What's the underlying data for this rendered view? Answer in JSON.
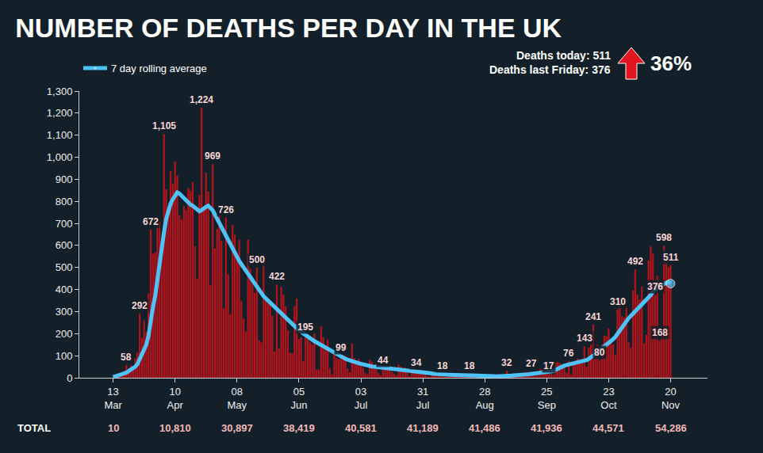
{
  "chart_data": {
    "type": "bar",
    "title": "NUMBER OF DEATHS PER DAY IN THE UK",
    "categories": [
      "13 Mar",
      null,
      null,
      null,
      null,
      null,
      null,
      null,
      null,
      null,
      null,
      null,
      null,
      null,
      null,
      null,
      null,
      null,
      null,
      null,
      null,
      null,
      null,
      null,
      null,
      null,
      null,
      null,
      "10 Apr",
      null,
      null,
      null,
      null,
      null,
      null,
      null,
      null,
      null,
      null,
      null,
      null,
      null,
      null,
      null,
      null,
      null,
      null,
      null,
      null,
      null,
      null,
      null,
      null,
      null,
      null,
      null,
      "08 May",
      null,
      null,
      null,
      null,
      null,
      null,
      null,
      null,
      null,
      null,
      null,
      null,
      null,
      null,
      null,
      null,
      null,
      null,
      null,
      null,
      null,
      null,
      null,
      null,
      null,
      null,
      null,
      "05 Jun",
      null,
      null,
      null,
      null,
      null,
      null,
      null,
      null,
      null,
      null,
      null,
      null,
      null,
      null,
      null,
      null,
      null,
      null,
      null,
      null,
      null,
      null,
      null,
      null,
      null,
      null,
      null,
      "03 Jul",
      null,
      null,
      null,
      null,
      null,
      null,
      null,
      null,
      null,
      null,
      null,
      null,
      null,
      null,
      null,
      null,
      null,
      null,
      null,
      null,
      null,
      null,
      null,
      null,
      null,
      null,
      null,
      "31 Jul",
      null,
      null,
      null,
      null,
      null,
      null,
      null,
      null,
      null,
      null,
      null,
      null,
      null,
      null,
      null,
      null,
      null,
      null,
      null,
      null,
      null,
      null,
      null,
      null,
      null,
      null,
      null,
      "28 Aug",
      null,
      null,
      null,
      null,
      null,
      null,
      null,
      null,
      null,
      null,
      null,
      null,
      null,
      null,
      null,
      null,
      null,
      null,
      null,
      null,
      null,
      null,
      null,
      null,
      null,
      null,
      null,
      "25 Sep",
      null,
      null,
      null,
      null,
      null,
      null,
      null,
      null,
      null,
      null,
      null,
      null,
      null,
      null,
      null,
      null,
      null,
      null,
      null,
      null,
      null,
      null,
      null,
      null,
      null,
      null,
      null,
      "23 Oct",
      null,
      null,
      null,
      null,
      null,
      null,
      null,
      null,
      null,
      null,
      null,
      null,
      null,
      null,
      null,
      null,
      null,
      null,
      null,
      null,
      null,
      null,
      null,
      null,
      null,
      null,
      null,
      "20 Nov"
    ],
    "series": [
      {
        "type": "bar",
        "color": "#b3141c",
        "values": [
          1,
          11,
          14,
          20,
          16,
          33,
          58,
          40,
          56,
          48,
          87,
          115,
          292,
          181,
          260,
          209,
          381,
          672,
          563,
          569,
          684,
          708,
          621,
          1105,
          854,
          758,
          938,
          881,
          980,
          917,
          737,
          717,
          778,
          761,
          861,
          847,
          888,
          596,
          449,
          828,
          1224,
          763,
          930,
          844,
          420,
          969,
          586,
          674,
          739,
          621,
          315,
          726,
          469,
          288,
          693,
          649,
          539,
          626,
          346,
          268,
          210,
          627,
          494,
          428,
          384,
          500,
          170,
          160,
          545,
          363,
          338,
          351,
          282,
          118,
          422,
          134,
          412,
          377,
          324,
          215,
          113,
          111,
          324,
          359,
          176,
          184,
          77,
          195,
          176,
          160,
          151,
          202,
          36,
          38,
          233,
          184,
          135,
          173,
          43,
          15,
          122,
          90,
          84,
          99,
          95,
          100,
          43,
          25,
          155,
          89,
          70,
          85,
          60,
          45,
          22,
          16,
          80,
          72,
          55,
          62,
          21,
          11,
          44,
          40,
          48,
          55,
          28,
          19,
          11,
          60,
          50,
          38,
          46,
          24,
          7,
          52,
          30,
          34,
          28,
          36,
          21,
          18,
          8,
          5,
          16,
          20,
          22,
          14,
          12,
          18,
          5,
          17,
          12,
          16,
          11,
          14,
          9,
          12,
          15,
          13,
          10,
          18,
          6,
          3,
          16,
          12,
          6,
          2,
          2,
          9,
          8,
          1,
          3,
          3,
          10,
          12,
          2,
          2,
          32,
          8,
          14,
          9,
          11,
          9,
          5,
          20,
          21,
          27,
          16,
          27,
          18,
          9,
          11,
          37,
          40,
          34,
          27,
          17,
          18,
          13,
          71,
          71,
          66,
          59,
          49,
          22,
          76,
          14,
          70,
          77,
          87,
          81,
          65,
          143,
          50,
          137,
          157,
          241,
          136,
          150,
          80,
          151,
          191,
          189,
          224,
          174,
          151,
          102,
          310,
          367,
          280,
          274,
          326,
          162,
          136,
          397,
          492,
          378,
          355,
          413,
          156,
          194,
          532,
          595,
          563,
          376,
          462,
          168,
          213,
          598,
          529,
          501,
          511
        ],
        "value_labels": [
          null,
          null,
          null,
          null,
          null,
          null,
          "58",
          null,
          null,
          null,
          null,
          null,
          "292",
          null,
          null,
          null,
          null,
          "672",
          null,
          null,
          null,
          null,
          null,
          "1,105",
          null,
          null,
          null,
          null,
          null,
          null,
          null,
          null,
          null,
          null,
          null,
          null,
          null,
          null,
          null,
          null,
          "1,224",
          null,
          null,
          null,
          null,
          "969",
          null,
          null,
          null,
          null,
          null,
          "726",
          null,
          null,
          null,
          null,
          null,
          null,
          null,
          null,
          null,
          null,
          null,
          null,
          null,
          "500",
          null,
          null,
          null,
          null,
          null,
          null,
          null,
          null,
          "422",
          null,
          null,
          null,
          null,
          null,
          null,
          null,
          null,
          null,
          null,
          null,
          null,
          "195",
          null,
          null,
          null,
          null,
          null,
          null,
          null,
          null,
          null,
          null,
          null,
          null,
          null,
          null,
          null,
          "99",
          null,
          null,
          null,
          null,
          null,
          null,
          null,
          null,
          null,
          null,
          null,
          null,
          null,
          null,
          null,
          null,
          null,
          null,
          "44",
          null,
          null,
          null,
          null,
          null,
          null,
          null,
          null,
          null,
          null,
          null,
          null,
          null,
          null,
          "34",
          null,
          null,
          null,
          null,
          null,
          null,
          null,
          null,
          null,
          null,
          null,
          "18",
          null,
          null,
          null,
          null,
          null,
          null,
          null,
          null,
          null,
          null,
          null,
          "18",
          null,
          null,
          null,
          null,
          null,
          null,
          null,
          null,
          null,
          null,
          null,
          null,
          null,
          null,
          null,
          null,
          "32",
          null,
          null,
          null,
          null,
          null,
          null,
          null,
          null,
          null,
          null,
          "27",
          null,
          null,
          null,
          null,
          null,
          null,
          null,
          "17",
          null,
          null,
          null,
          null,
          null,
          null,
          null,
          null,
          "76",
          null,
          null,
          null,
          null,
          null,
          null,
          "143",
          null,
          null,
          null,
          "241",
          null,
          null,
          "80",
          null,
          null,
          null,
          null,
          null,
          null,
          null,
          "310",
          null,
          null,
          null,
          null,
          null,
          null,
          null,
          "492",
          null,
          null,
          null,
          null,
          null,
          null,
          null,
          null,
          "376",
          null,
          "168",
          null,
          "598",
          null,
          null,
          "511"
        ]
      },
      {
        "type": "line",
        "name": "7 day rolling average",
        "color": "#4fc3f7",
        "values": [
          3,
          6,
          9,
          12,
          15,
          19,
          23,
          30,
          36,
          42,
          50,
          62,
          84,
          100,
          125,
          150,
          190,
          270,
          320,
          370,
          450,
          520,
          580,
          660,
          720,
          760,
          790,
          810,
          830,
          840,
          835,
          825,
          815,
          800,
          790,
          785,
          780,
          770,
          760,
          755,
          760,
          770,
          775,
          780,
          770,
          760,
          740,
          720,
          700,
          680,
          660,
          640,
          620,
          600,
          580,
          560,
          545,
          530,
          515,
          500,
          485,
          470,
          455,
          440,
          425,
          410,
          395,
          380,
          370,
          360,
          350,
          340,
          330,
          320,
          310,
          300,
          290,
          280,
          270,
          260,
          250,
          240,
          230,
          222,
          215,
          208,
          200,
          193,
          186,
          180,
          173,
          166,
          160,
          154,
          148,
          142,
          137,
          132,
          127,
          122,
          112,
          106,
          100,
          95,
          90,
          86,
          82,
          78,
          75,
          72,
          70,
          66,
          63,
          60,
          57,
          55,
          53,
          51,
          50,
          49,
          48,
          47,
          46,
          45,
          44,
          43,
          42,
          41,
          40,
          39,
          38,
          37,
          36,
          35,
          34,
          33,
          32,
          31,
          30,
          29,
          28,
          26,
          24,
          22,
          20,
          18,
          17,
          16,
          15,
          15,
          14,
          14,
          14,
          13,
          13,
          13,
          12,
          12,
          12,
          12,
          12,
          11,
          11,
          11,
          10,
          10,
          9,
          9,
          8,
          8,
          7,
          7,
          7,
          6,
          6,
          6,
          7,
          7,
          9,
          10,
          10,
          11,
          11,
          12,
          12,
          13,
          14,
          15,
          16,
          17,
          18,
          19,
          20,
          21,
          22,
          23,
          24,
          25,
          27,
          30,
          36,
          42,
          48,
          52,
          55,
          58,
          60,
          62,
          64,
          66,
          68,
          70,
          72,
          75,
          80,
          86,
          92,
          100,
          110,
          118,
          125,
          130,
          138,
          146,
          155,
          165,
          175,
          185,
          200,
          215,
          230,
          245,
          260,
          270,
          280,
          290,
          300,
          310,
          320,
          330,
          340,
          350,
          360,
          375,
          390,
          400,
          410,
          415,
          420,
          425,
          430,
          435,
          427
        ]
      }
    ],
    "ylim": [
      0,
      1300
    ],
    "yticks": [
      0,
      100,
      200,
      300,
      400,
      500,
      600,
      700,
      800,
      900,
      {
        "value": 1000,
        "label": "1,000"
      },
      {
        "value": 1100,
        "label": "1,100"
      },
      {
        "value": 1200,
        "label": "1,200"
      },
      {
        "value": 1300,
        "label": "1,300"
      }
    ],
    "grid": false,
    "data_labels": true,
    "legend": "top-left",
    "totals": {
      "label": "TOTAL",
      "values": [
        10,
        10810,
        30897,
        38419,
        40581,
        41189,
        41486,
        41936,
        44571,
        54286
      ]
    },
    "summary": {
      "today": "Deaths today: 511",
      "last_friday": "Deaths last Friday: 376",
      "change": "36%"
    }
  }
}
